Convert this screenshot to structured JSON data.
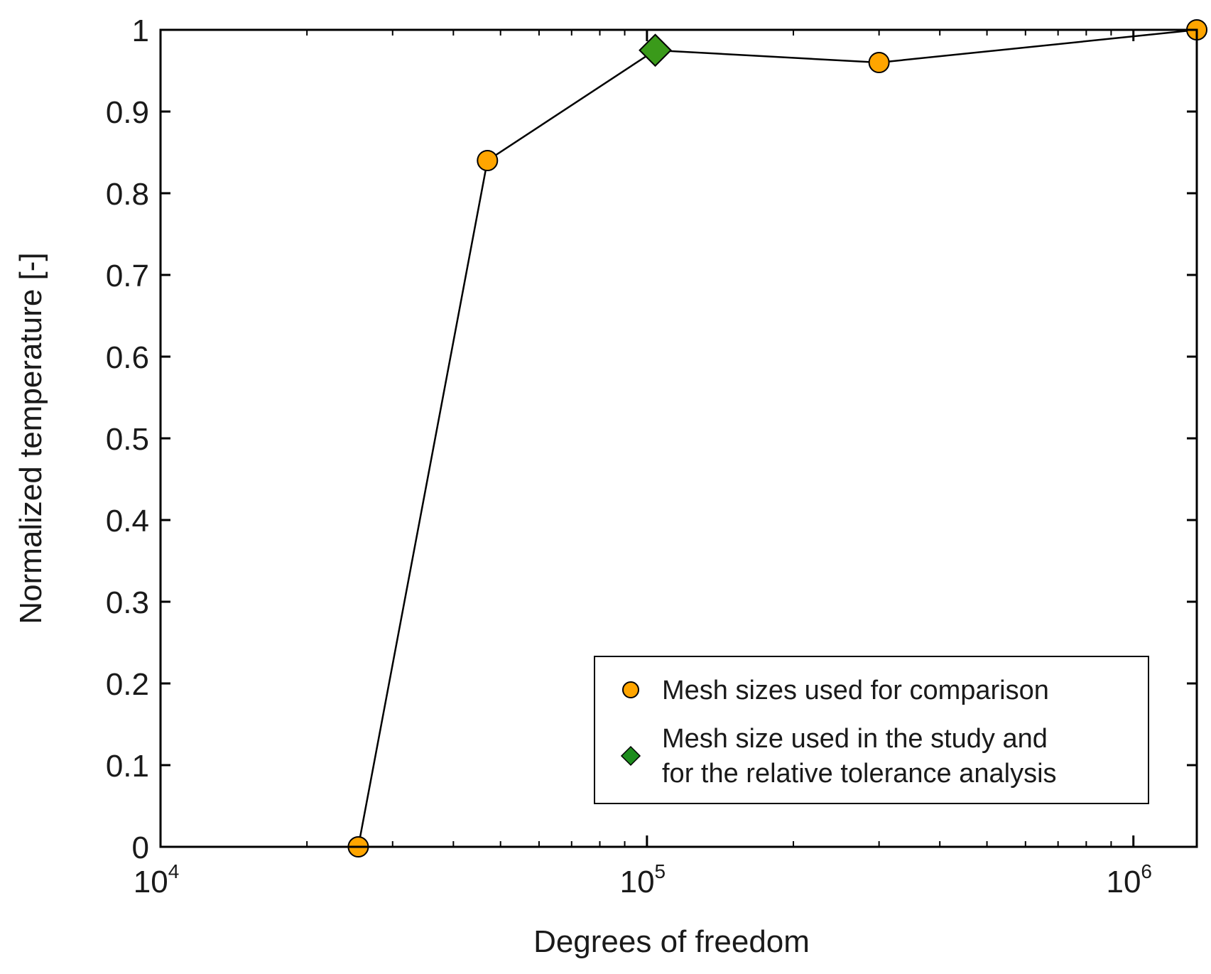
{
  "chart_data": {
    "type": "scatter",
    "xscale": "log",
    "xlim": [
      10000,
      1350000
    ],
    "ylim": [
      0,
      1
    ],
    "xlabel": "Degrees of freedom",
    "ylabel": "Normalized temperature [-]",
    "x_ticks": [
      {
        "value": 10000,
        "base": "10",
        "exp": "4"
      },
      {
        "value": 100000,
        "base": "10",
        "exp": "5"
      },
      {
        "value": 1000000,
        "base": "10",
        "exp": "6"
      }
    ],
    "y_ticks": [
      {
        "value": 0,
        "label": "0"
      },
      {
        "value": 0.1,
        "label": "0.1"
      },
      {
        "value": 0.2,
        "label": "0.2"
      },
      {
        "value": 0.3,
        "label": "0.3"
      },
      {
        "value": 0.4,
        "label": "0.4"
      },
      {
        "value": 0.5,
        "label": "0.5"
      },
      {
        "value": 0.6,
        "label": "0.6"
      },
      {
        "value": 0.7,
        "label": "0.7"
      },
      {
        "value": 0.8,
        "label": "0.8"
      },
      {
        "value": 0.9,
        "label": "0.9"
      },
      {
        "value": 1,
        "label": "1"
      }
    ],
    "line": {
      "color": "#000000",
      "x": [
        25500,
        47000,
        104000,
        300000,
        1350000
      ],
      "y": [
        0,
        0.84,
        0.975,
        0.96,
        1.0
      ]
    },
    "series": [
      {
        "name": "Mesh sizes used for comparison",
        "marker": "circle",
        "color": "#FFA500",
        "x": [
          25500,
          47000,
          300000,
          1350000
        ],
        "y": [
          0,
          0.84,
          0.96,
          1.0
        ]
      },
      {
        "name": "Mesh size used in the study and for the relative tolerance analysis",
        "legend_lines": [
          "Mesh size used in the study and",
          "for the relative tolerance analysis"
        ],
        "marker": "diamond",
        "color": "#3A9A1A",
        "legend_color": "#1E8C1E",
        "x": [
          104000
        ],
        "y": [
          0.975
        ]
      }
    ],
    "grid": false,
    "legend_position": "bottom-right"
  }
}
